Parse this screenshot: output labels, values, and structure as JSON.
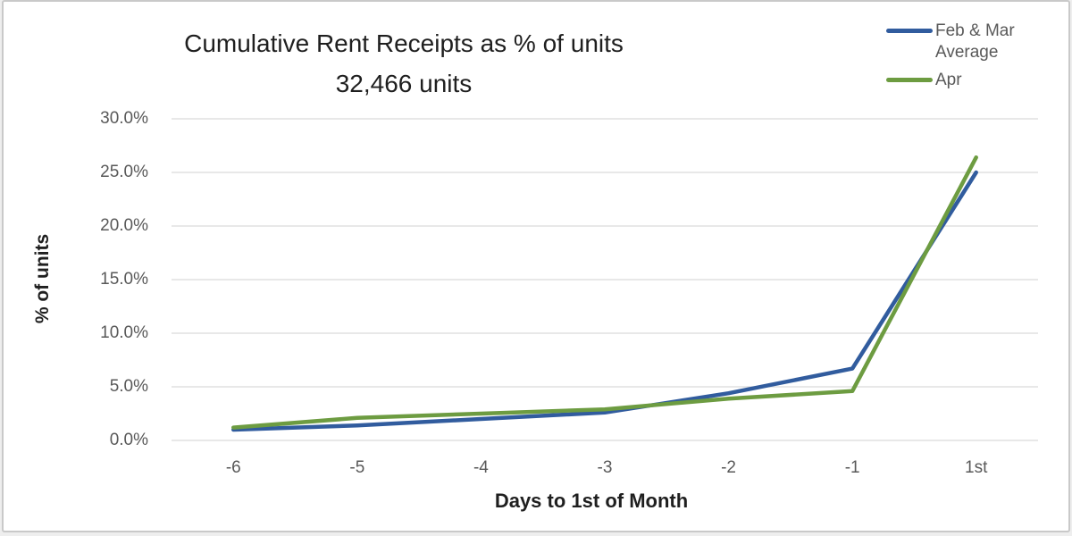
{
  "chart_data": {
    "type": "line",
    "title": "Cumulative Rent Receipts as % of units",
    "subtitle": "32,466 units",
    "xlabel": "Days to 1st of Month",
    "ylabel": "% of units",
    "categories": [
      "-6",
      "-5",
      "-4",
      "-3",
      "-2",
      "-1",
      "1st"
    ],
    "series": [
      {
        "name": "Feb & Mar Average",
        "color": "#315C9E",
        "values": [
          1.0,
          1.4,
          2.0,
          2.6,
          4.4,
          6.7,
          25.0
        ]
      },
      {
        "name": "Apr",
        "color": "#6D9C41",
        "values": [
          1.2,
          2.1,
          2.5,
          2.9,
          3.9,
          4.6,
          26.4
        ]
      }
    ],
    "ylim": [
      0,
      30
    ],
    "yticks": [
      {
        "value": 0,
        "label": "0.0%"
      },
      {
        "value": 5,
        "label": "5.0%"
      },
      {
        "value": 10,
        "label": "10.0%"
      },
      {
        "value": 15,
        "label": "15.0%"
      },
      {
        "value": 20,
        "label": "20.0%"
      },
      {
        "value": 25,
        "label": "25.0%"
      },
      {
        "value": 30,
        "label": "30.0%"
      }
    ],
    "grid": "horizontal",
    "legend_position": "top-right"
  },
  "style": {
    "gridline_color": "#D9D9D9",
    "tick_text_color": "#595959",
    "title_text_color": "#1f1f1f",
    "frame_border_color": "#c9c9c9",
    "line_width": 4.5
  }
}
